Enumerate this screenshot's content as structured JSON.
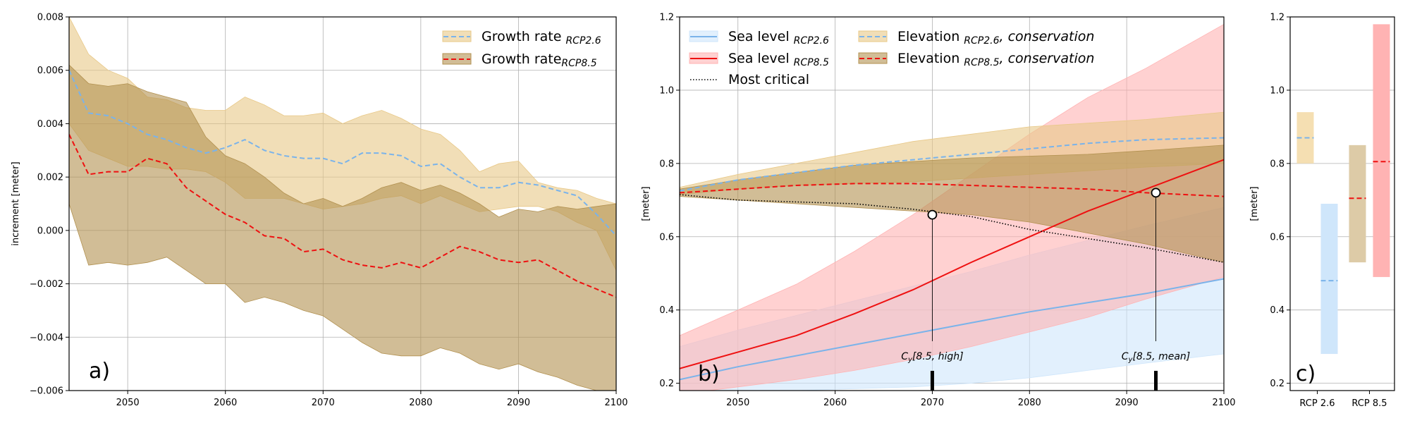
{
  "chart_data": [
    {
      "panel": "a)",
      "type": "line",
      "ylabel": "increment [meter]",
      "xlim": [
        2044,
        2100
      ],
      "ylim": [
        -0.006,
        0.008
      ],
      "xticks": [
        2050,
        2060,
        2070,
        2080,
        2090,
        2100
      ],
      "yticks": [
        -0.006,
        -0.004,
        -0.002,
        0.0,
        0.002,
        0.004,
        0.006,
        0.008
      ],
      "ytick_labels": [
        "−0.006",
        "−0.004",
        "−0.002",
        "0.000",
        "0.002",
        "0.004",
        "0.006",
        "0.008"
      ],
      "grid": true,
      "legend_placement": "top-right",
      "x": [
        2044,
        2046,
        2048,
        2050,
        2052,
        2054,
        2056,
        2058,
        2060,
        2062,
        2064,
        2066,
        2068,
        2070,
        2072,
        2074,
        2076,
        2078,
        2080,
        2082,
        2084,
        2086,
        2088,
        2090,
        2092,
        2094,
        2096,
        2098,
        2100
      ],
      "series": [
        {
          "legend_main": "Growth rate ",
          "legend_sub": "RCP2.6",
          "line_color": "#7ab3ea",
          "fill_color": "#e8c887",
          "values": [
            0.006,
            0.0044,
            0.0043,
            0.004,
            0.0036,
            0.0034,
            0.0031,
            0.0029,
            0.0031,
            0.0034,
            0.003,
            0.0028,
            0.0027,
            0.0027,
            0.0025,
            0.0029,
            0.0029,
            0.0028,
            0.0024,
            0.0025,
            0.002,
            0.0016,
            0.0016,
            0.0018,
            0.0017,
            0.0015,
            0.0013,
            0.0006,
            -0.0002
          ],
          "upper": [
            0.008,
            0.0066,
            0.006,
            0.0057,
            0.005,
            0.0049,
            0.0046,
            0.0045,
            0.0045,
            0.005,
            0.0047,
            0.0043,
            0.0043,
            0.0044,
            0.004,
            0.0043,
            0.0045,
            0.0042,
            0.0038,
            0.0036,
            0.003,
            0.0022,
            0.0025,
            0.0026,
            0.0018,
            0.0016,
            0.0015,
            0.0012,
            0.001
          ],
          "lower": [
            0.004,
            0.003,
            0.0027,
            0.0024,
            0.0024,
            0.0023,
            0.0023,
            0.0022,
            0.0018,
            0.0012,
            0.0012,
            0.0012,
            0.001,
            0.0008,
            0.0009,
            0.001,
            0.0012,
            0.0013,
            0.001,
            0.0013,
            0.001,
            0.0007,
            0.0008,
            0.0009,
            0.0009,
            0.0007,
            0.0003,
            0.0,
            -0.0015
          ]
        },
        {
          "legend_main": "Growth rate",
          "legend_sub": "RCP8.5",
          "line_color": "#ee1111",
          "fill_color": "#b29150",
          "values": [
            0.0036,
            0.0021,
            0.0022,
            0.0022,
            0.0027,
            0.0025,
            0.0016,
            0.0011,
            0.0006,
            0.0003,
            -0.0002,
            -0.0003,
            -0.0008,
            -0.0007,
            -0.0011,
            -0.0013,
            -0.0014,
            -0.0012,
            -0.0014,
            -0.001,
            -0.0006,
            -0.0008,
            -0.0011,
            -0.0012,
            -0.0011,
            -0.0015,
            -0.0019,
            -0.0022,
            -0.0025
          ],
          "upper": [
            0.0062,
            0.0055,
            0.0054,
            0.0055,
            0.0052,
            0.005,
            0.0048,
            0.0035,
            0.0028,
            0.0025,
            0.002,
            0.0014,
            0.001,
            0.0012,
            0.0009,
            0.0012,
            0.0016,
            0.0018,
            0.0015,
            0.0017,
            0.0014,
            0.001,
            0.0005,
            0.0008,
            0.0007,
            0.0009,
            0.0008,
            0.0009,
            0.001
          ],
          "lower": [
            0.001,
            -0.0013,
            -0.0012,
            -0.0013,
            -0.0012,
            -0.001,
            -0.0015,
            -0.002,
            -0.002,
            -0.0027,
            -0.0025,
            -0.0027,
            -0.003,
            -0.0032,
            -0.0037,
            -0.0042,
            -0.0046,
            -0.0047,
            -0.0047,
            -0.0044,
            -0.0046,
            -0.005,
            -0.0052,
            -0.005,
            -0.0053,
            -0.0055,
            -0.0058,
            -0.006,
            -0.006
          ]
        }
      ]
    },
    {
      "panel": "b)",
      "type": "line",
      "ylabel": "[meter]",
      "xlim": [
        2044,
        2100
      ],
      "ylim": [
        0.18,
        1.2
      ],
      "xticks": [
        2050,
        2060,
        2070,
        2080,
        2090,
        2100
      ],
      "yticks": [
        0.2,
        0.4,
        0.6,
        0.8,
        1.0,
        1.2
      ],
      "ytick_labels": [
        "0.2",
        "0.4",
        "0.6",
        "0.8",
        "1.0",
        "1.2"
      ],
      "grid": true,
      "legend_placement": "top-left",
      "x": [
        2044,
        2050,
        2056,
        2062,
        2068,
        2074,
        2080,
        2086,
        2092,
        2100
      ],
      "series": [
        {
          "legend_main": "Sea level ",
          "legend_sub": "RCP2.6",
          "style": "solid",
          "line_color": "#7ab3ea",
          "fill_color": "#cfe6fb",
          "values": [
            0.21,
            0.245,
            0.275,
            0.305,
            0.335,
            0.365,
            0.395,
            0.42,
            0.445,
            0.485
          ],
          "upper": [
            0.3,
            0.345,
            0.385,
            0.425,
            0.465,
            0.505,
            0.55,
            0.59,
            0.63,
            0.68
          ],
          "lower": [
            0.16,
            0.17,
            0.18,
            0.185,
            0.19,
            0.2,
            0.215,
            0.235,
            0.255,
            0.28
          ]
        },
        {
          "legend_main": "Sea level ",
          "legend_sub": "RCP8.5",
          "style": "solid",
          "line_color": "#ee1111",
          "fill_color": "#ffb3b3",
          "values": [
            0.24,
            0.285,
            0.33,
            0.39,
            0.455,
            0.53,
            0.6,
            0.67,
            0.73,
            0.81
          ],
          "upper": [
            0.33,
            0.4,
            0.47,
            0.56,
            0.66,
            0.77,
            0.88,
            0.98,
            1.06,
            1.18
          ],
          "lower": [
            0.17,
            0.19,
            0.21,
            0.235,
            0.265,
            0.3,
            0.34,
            0.38,
            0.43,
            0.49
          ]
        },
        {
          "legend_main": "Elevation ",
          "legend_sub": "RCP2.6",
          "legend_tail": ", conservation",
          "style": "dashed",
          "line_color": "#7ab3ea",
          "fill_color": "#e8c887",
          "values": [
            0.725,
            0.755,
            0.775,
            0.795,
            0.81,
            0.825,
            0.84,
            0.855,
            0.865,
            0.87
          ],
          "upper": [
            0.735,
            0.77,
            0.8,
            0.83,
            0.86,
            0.88,
            0.9,
            0.91,
            0.92,
            0.94
          ],
          "lower": [
            0.715,
            0.73,
            0.74,
            0.745,
            0.75,
            0.76,
            0.77,
            0.78,
            0.79,
            0.8
          ]
        },
        {
          "legend_main": "Elevation ",
          "legend_sub": "RCP8.5",
          "legend_tail": ", conservation",
          "style": "dashed",
          "line_color": "#ee1111",
          "fill_color": "#b29150",
          "values": [
            0.72,
            0.73,
            0.74,
            0.745,
            0.745,
            0.74,
            0.735,
            0.73,
            0.72,
            0.71
          ],
          "upper": [
            0.73,
            0.755,
            0.775,
            0.795,
            0.805,
            0.815,
            0.82,
            0.825,
            0.835,
            0.85
          ],
          "lower": [
            0.71,
            0.7,
            0.69,
            0.68,
            0.67,
            0.66,
            0.64,
            0.61,
            0.58,
            0.53
          ]
        },
        {
          "legend_main": "Most critical",
          "style": "dotted",
          "line_color": "#000000",
          "values": [
            0.715,
            0.7,
            0.695,
            0.69,
            0.675,
            0.655,
            0.62,
            0.595,
            0.57,
            0.53
          ]
        }
      ],
      "markers": [
        {
          "x": 2070,
          "y": 0.66,
          "label_main": "C",
          "label_sub": "y",
          "label_tail": "[8.5, high]"
        },
        {
          "x": 2093,
          "y": 0.72,
          "label_main": "C",
          "label_sub": "y",
          "label_tail": "[8.5, mean]"
        }
      ]
    },
    {
      "panel": "c)",
      "type": "bar",
      "ylabel": "[meter]",
      "ylim": [
        0.18,
        1.2
      ],
      "yticks": [
        0.2,
        0.4,
        0.6,
        0.8,
        1.0,
        1.2
      ],
      "ytick_labels": [
        "0.2",
        "0.4",
        "0.6",
        "0.8",
        "1.0",
        "1.2"
      ],
      "categories": [
        "RCP 2.6",
        "RCP 8.5"
      ],
      "bars": [
        {
          "group": 0,
          "offset": -1,
          "color": "#f5dfb2",
          "line_color": "#7ab3ea",
          "low": 0.8,
          "high": 0.94,
          "mid": 0.87
        },
        {
          "group": 0,
          "offset": 1,
          "color": "#cfe6fb",
          "line_color": "#7ab3ea",
          "low": 0.28,
          "high": 0.69,
          "mid": 0.48
        },
        {
          "group": 1,
          "offset": -1,
          "color": "#ddcba7",
          "line_color": "#ee1111",
          "low": 0.53,
          "high": 0.85,
          "mid": 0.705
        },
        {
          "group": 1,
          "offset": 1,
          "color": "#ffb3b3",
          "line_color": "#ee1111",
          "low": 0.49,
          "high": 1.18,
          "mid": 0.805
        }
      ]
    }
  ]
}
